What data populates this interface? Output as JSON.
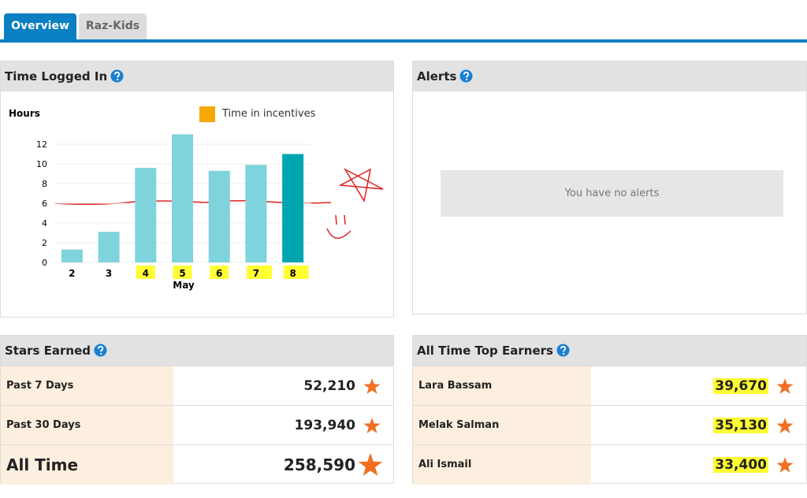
{
  "tabs": [
    "Overview",
    "Raz-Kids"
  ],
  "time_logged": {
    "title": "Time Logged In"
  },
  "chart_data": {
    "type": "bar",
    "y_label": "Hours",
    "x_label": "May",
    "legend": "Time in incentives",
    "legend_color": "#f5a800",
    "categories": [
      "2",
      "3",
      "4",
      "5",
      "6",
      "7",
      "8"
    ],
    "values": [
      1.3,
      3.1,
      9.6,
      13.0,
      9.3,
      9.9,
      11.0
    ],
    "colors": [
      "#7fd3dc",
      "#7fd3dc",
      "#7fd3dc",
      "#7fd3dc",
      "#7fd3dc",
      "#7fd3dc",
      "#00a5b0"
    ],
    "ylim": [
      0,
      13
    ],
    "yticks": [
      0,
      2,
      4,
      6,
      8,
      10,
      12
    ],
    "grid": true
  },
  "alerts": {
    "title": "Alerts",
    "message": "You have no alerts"
  },
  "stars_earned": {
    "title": "Stars Earned",
    "rows": [
      {
        "label": "Past 7 Days",
        "value": "52,210"
      },
      {
        "label": "Past 30 Days",
        "value": "193,940"
      },
      {
        "label": "All Time",
        "value": "258,590"
      }
    ]
  },
  "top_earners": {
    "title": "All Time Top Earners",
    "rows": [
      {
        "label": "Lara Bassam",
        "value": "39,670"
      },
      {
        "label": "Melak Salman",
        "value": "35,130"
      },
      {
        "label": "Ali Ismail",
        "value": "33,400"
      }
    ]
  }
}
